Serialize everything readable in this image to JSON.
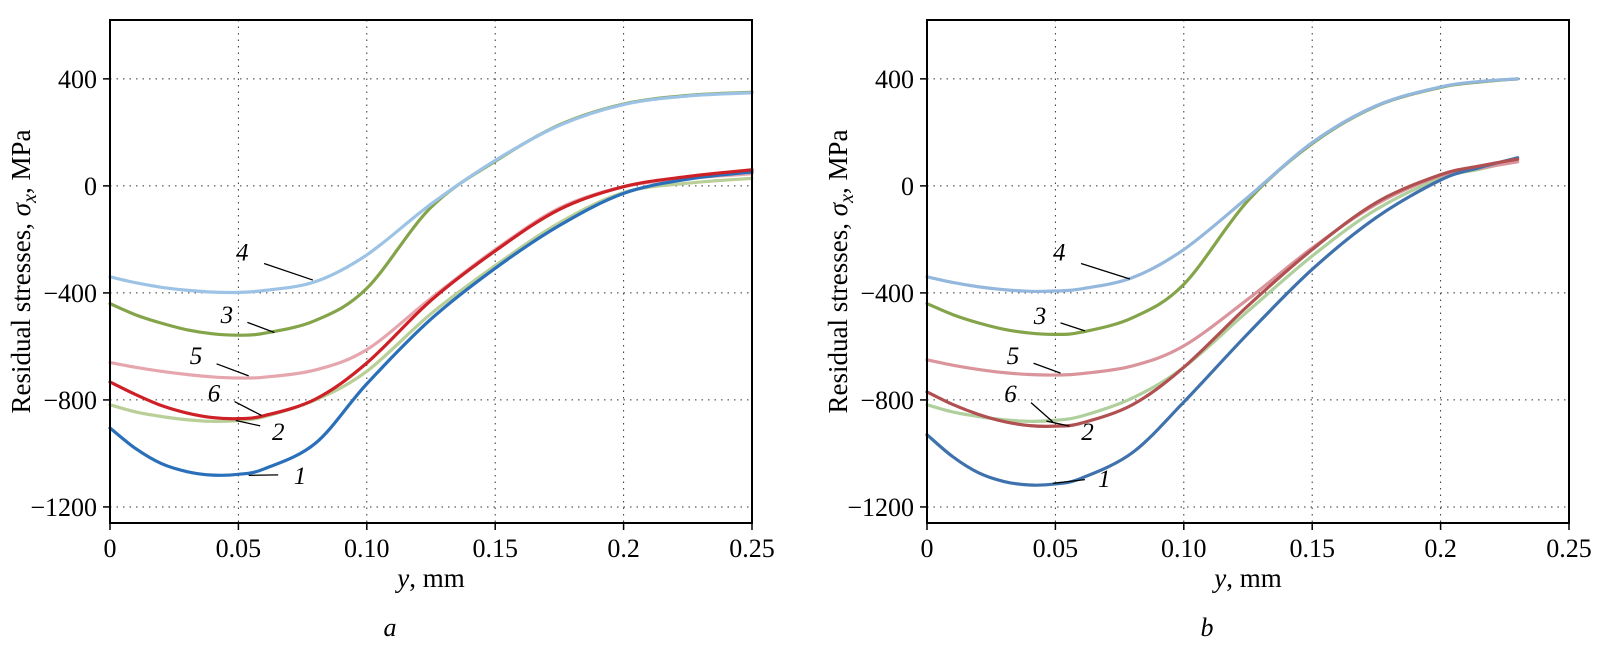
{
  "figure": {
    "caption_a": "a",
    "caption_b": "b"
  },
  "chart_data": [
    {
      "type": "line",
      "caption": "a",
      "xlabel_italic": "y",
      "xlabel_rest": ", mm",
      "ylabel_prefix": "Residual stresses, ",
      "ylabel_symbol": "σ",
      "ylabel_sub": "x",
      "ylabel_suffix": ", MPa",
      "xlim": [
        0,
        0.25
      ],
      "ylim": [
        -1260,
        620
      ],
      "xticks": [
        0,
        0.05,
        0.1,
        0.15,
        0.2,
        0.25
      ],
      "xtick_labels": [
        "0",
        "0.05",
        "0.10",
        "0.15",
        "0.2",
        "0.25"
      ],
      "yticks": [
        -1200,
        -800,
        -400,
        0,
        400
      ],
      "ytick_labels": [
        "−1200",
        "−800",
        "−400",
        "0",
        "400"
      ],
      "grid": true,
      "series": [
        {
          "name": "2",
          "color": "#b9cf97",
          "x": [
            0,
            0.01,
            0.02,
            0.03,
            0.04,
            0.05,
            0.06,
            0.08,
            0.1,
            0.125,
            0.15,
            0.175,
            0.2,
            0.225,
            0.25
          ],
          "y": [
            -818,
            -845,
            -862,
            -874,
            -880,
            -877,
            -863,
            -800,
            -693,
            -478,
            -298,
            -138,
            -25,
            10,
            28
          ]
        },
        {
          "name": "5",
          "color": "#e6a6ad",
          "x": [
            0,
            0.01,
            0.02,
            0.03,
            0.04,
            0.05,
            0.06,
            0.08,
            0.1,
            0.125,
            0.15,
            0.175,
            0.2,
            0.225,
            0.25
          ],
          "y": [
            -660,
            -678,
            -693,
            -705,
            -714,
            -718,
            -715,
            -688,
            -612,
            -420,
            -238,
            -83,
            -3,
            28,
            45
          ]
        },
        {
          "name": "1",
          "color": "#2a6fba",
          "x": [
            0,
            0.01,
            0.02,
            0.03,
            0.04,
            0.05,
            0.06,
            0.08,
            0.1,
            0.125,
            0.15,
            0.175,
            0.2,
            0.225,
            0.25
          ],
          "y": [
            -905,
            -982,
            -1038,
            -1068,
            -1081,
            -1078,
            -1058,
            -962,
            -740,
            -498,
            -308,
            -148,
            -28,
            25,
            52
          ]
        },
        {
          "name": "6",
          "color": "#cd2027",
          "x": [
            0,
            0.01,
            0.02,
            0.03,
            0.04,
            0.05,
            0.06,
            0.08,
            0.1,
            0.125,
            0.15,
            0.175,
            0.2,
            0.225,
            0.25
          ],
          "y": [
            -733,
            -780,
            -821,
            -849,
            -866,
            -870,
            -859,
            -797,
            -662,
            -428,
            -243,
            -88,
            -3,
            35,
            60
          ]
        },
        {
          "name": "3",
          "color": "#84a44a",
          "x": [
            0,
            0.01,
            0.02,
            0.03,
            0.04,
            0.05,
            0.06,
            0.08,
            0.1,
            0.125,
            0.15,
            0.175,
            0.2,
            0.225,
            0.25
          ],
          "y": [
            -440,
            -482,
            -513,
            -538,
            -553,
            -558,
            -551,
            -503,
            -383,
            -80,
            92,
            228,
            306,
            338,
            350
          ]
        },
        {
          "name": "4",
          "color": "#9cc3e5",
          "x": [
            0,
            0.01,
            0.02,
            0.03,
            0.04,
            0.05,
            0.06,
            0.08,
            0.1,
            0.125,
            0.15,
            0.175,
            0.2,
            0.225,
            0.25
          ],
          "y": [
            -340,
            -362,
            -379,
            -390,
            -397,
            -398,
            -391,
            -358,
            -258,
            -68,
            95,
            226,
            304,
            336,
            348
          ]
        }
      ],
      "annotations": [
        {
          "text": "4",
          "tx": 0.0515,
          "ty": -245,
          "line": [
            0.06,
            -290,
            0.079,
            -352
          ]
        },
        {
          "text": "3",
          "tx": 0.0455,
          "ty": -478,
          "line": [
            0.0535,
            -510,
            0.064,
            -548
          ]
        },
        {
          "text": "5",
          "tx": 0.0335,
          "ty": -632,
          "line": [
            0.0415,
            -665,
            0.054,
            -710
          ]
        },
        {
          "text": "6",
          "tx": 0.0405,
          "ty": -772,
          "line": [
            0.0485,
            -806,
            0.059,
            -858
          ]
        },
        {
          "text": "2",
          "tx": 0.0655,
          "ty": -916,
          "line": [
            0.0585,
            -897,
            0.049,
            -877
          ]
        },
        {
          "text": "1",
          "tx": 0.074,
          "ty": -1080,
          "line": [
            0.0655,
            -1080,
            0.054,
            -1082
          ]
        }
      ]
    },
    {
      "type": "line",
      "caption": "b",
      "xlabel_italic": "y",
      "xlabel_rest": ", mm",
      "ylabel_prefix": "Residual stresses, ",
      "ylabel_symbol": "σ",
      "ylabel_sub": "x",
      "ylabel_suffix": ", MPa",
      "xlim": [
        0,
        0.25
      ],
      "ylim": [
        -1260,
        620
      ],
      "xticks": [
        0,
        0.05,
        0.1,
        0.15,
        0.2,
        0.25
      ],
      "xtick_labels": [
        "0",
        "0.05",
        "0.10",
        "0.15",
        "0.2",
        "0.25"
      ],
      "yticks": [
        -1200,
        -800,
        -400,
        0,
        400
      ],
      "ytick_labels": [
        "−1200",
        "−800",
        "−400",
        "0",
        "400"
      ],
      "grid": true,
      "series": [
        {
          "name": "2",
          "color": "#afcf9c",
          "x": [
            0,
            0.01,
            0.02,
            0.03,
            0.04,
            0.05,
            0.06,
            0.08,
            0.1,
            0.125,
            0.15,
            0.175,
            0.2,
            0.215,
            0.23
          ],
          "y": [
            -818,
            -845,
            -862,
            -874,
            -880,
            -876,
            -861,
            -793,
            -678,
            -468,
            -262,
            -88,
            28,
            62,
            95
          ]
        },
        {
          "name": "5",
          "color": "#da949b",
          "x": [
            0,
            0.01,
            0.02,
            0.03,
            0.04,
            0.05,
            0.06,
            0.08,
            0.1,
            0.125,
            0.15,
            0.175,
            0.2,
            0.215,
            0.23
          ],
          "y": [
            -650,
            -670,
            -686,
            -698,
            -705,
            -707,
            -702,
            -673,
            -598,
            -423,
            -232,
            -68,
            38,
            66,
            90
          ]
        },
        {
          "name": "1",
          "color": "#3f72ac",
          "x": [
            0,
            0.01,
            0.02,
            0.03,
            0.04,
            0.05,
            0.06,
            0.08,
            0.1,
            0.125,
            0.15,
            0.175,
            0.2,
            0.215,
            0.23
          ],
          "y": [
            -930,
            -1012,
            -1072,
            -1105,
            -1118,
            -1114,
            -1093,
            -997,
            -808,
            -552,
            -312,
            -118,
            22,
            68,
            105
          ]
        },
        {
          "name": "6",
          "color": "#b15050",
          "x": [
            0,
            0.01,
            0.02,
            0.03,
            0.04,
            0.05,
            0.06,
            0.08,
            0.1,
            0.125,
            0.15,
            0.175,
            0.2,
            0.215,
            0.23
          ],
          "y": [
            -770,
            -817,
            -854,
            -881,
            -896,
            -898,
            -887,
            -818,
            -678,
            -448,
            -238,
            -62,
            42,
            74,
            100
          ]
        },
        {
          "name": "3",
          "color": "#84a44a",
          "x": [
            0,
            0.01,
            0.02,
            0.03,
            0.04,
            0.05,
            0.06,
            0.08,
            0.1,
            0.125,
            0.15,
            0.175,
            0.2,
            0.215,
            0.23
          ],
          "y": [
            -440,
            -481,
            -512,
            -536,
            -550,
            -555,
            -547,
            -493,
            -368,
            -55,
            158,
            298,
            368,
            388,
            400
          ]
        },
        {
          "name": "4",
          "color": "#93b7dd",
          "x": [
            0,
            0.01,
            0.02,
            0.03,
            0.04,
            0.05,
            0.06,
            0.08,
            0.1,
            0.125,
            0.15,
            0.175,
            0.2,
            0.215,
            0.23
          ],
          "y": [
            -340,
            -361,
            -377,
            -388,
            -394,
            -393,
            -385,
            -343,
            -238,
            -42,
            162,
            300,
            370,
            390,
            400
          ]
        }
      ],
      "annotations": [
        {
          "text": "4",
          "tx": 0.0515,
          "ty": -245,
          "line": [
            0.06,
            -290,
            0.079,
            -348
          ]
        },
        {
          "text": "3",
          "tx": 0.044,
          "ty": -482,
          "line": [
            0.052,
            -512,
            0.0615,
            -542
          ]
        },
        {
          "text": "5",
          "tx": 0.0335,
          "ty": -632,
          "line": [
            0.0415,
            -663,
            0.052,
            -700
          ]
        },
        {
          "text": "6",
          "tx": 0.0325,
          "ty": -775,
          "line": [
            0.0405,
            -810,
            0.049,
            -882
          ]
        },
        {
          "text": "2",
          "tx": 0.0625,
          "ty": -916,
          "line": [
            0.0555,
            -898,
            0.0465,
            -879
          ]
        },
        {
          "text": "1",
          "tx": 0.069,
          "ty": -1092,
          "line": [
            0.0615,
            -1098,
            0.049,
            -1112
          ]
        }
      ]
    }
  ]
}
